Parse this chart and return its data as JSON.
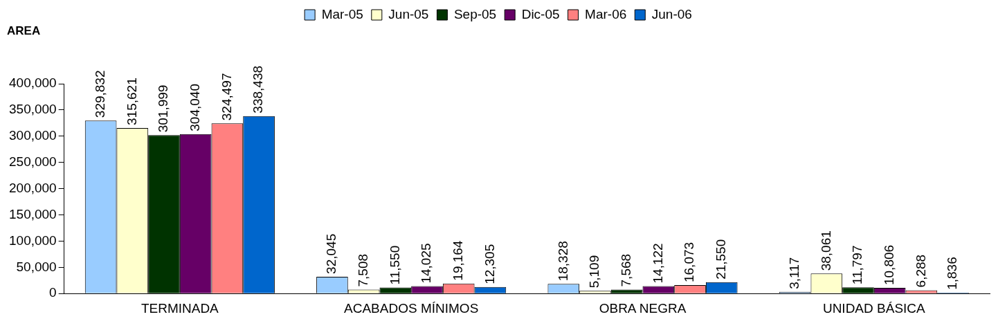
{
  "chart_data": {
    "type": "bar",
    "title": "AREA",
    "categories": [
      "TERMINADA",
      "ACABADOS MÍNIMOS",
      "OBRA NEGRA",
      "UNIDAD BÁSICA"
    ],
    "series": [
      {
        "name": "Mar-05",
        "color": "#99ccff",
        "values": [
          329832,
          32045,
          18328,
          3117
        ],
        "value_labels": [
          "329,832",
          "32,045",
          "18,328",
          "3,117"
        ]
      },
      {
        "name": "Jun-05",
        "color": "#ffffcc",
        "values": [
          315621,
          7508,
          5109,
          38061
        ],
        "value_labels": [
          "315,621",
          "7,508",
          "5,109",
          "38,061"
        ]
      },
      {
        "name": "Sep-05",
        "color": "#003300",
        "values": [
          301999,
          11550,
          7568,
          11797
        ],
        "value_labels": [
          "301,999",
          "11,550",
          "7,568",
          "11,797"
        ]
      },
      {
        "name": "Dic-05",
        "color": "#660066",
        "values": [
          304040,
          14025,
          14122,
          10806
        ],
        "value_labels": [
          "304,040",
          "14,025",
          "14,122",
          "10,806"
        ]
      },
      {
        "name": "Mar-06",
        "color": "#ff8080",
        "values": [
          324497,
          19164,
          16073,
          6288
        ],
        "value_labels": [
          "324,497",
          "19,164",
          "16,073",
          "6,288"
        ]
      },
      {
        "name": "Jun-06",
        "color": "#0066cc",
        "values": [
          338438,
          12305,
          21550,
          1836
        ],
        "value_labels": [
          "338,438",
          "12,305",
          "21,550",
          "1,836"
        ]
      }
    ],
    "ylim": [
      0,
      400000
    ],
    "yticks": [
      {
        "value": 0,
        "label": "0"
      },
      {
        "value": 50000,
        "label": "50,000"
      },
      {
        "value": 100000,
        "label": "100,000"
      },
      {
        "value": 150000,
        "label": "150,000"
      },
      {
        "value": 200000,
        "label": "200,000"
      },
      {
        "value": 250000,
        "label": "250,000"
      },
      {
        "value": 300000,
        "label": "300,000"
      },
      {
        "value": 350000,
        "label": "350,000"
      },
      {
        "value": 400000,
        "label": "400,000"
      }
    ],
    "grid": false,
    "legend": "top"
  }
}
